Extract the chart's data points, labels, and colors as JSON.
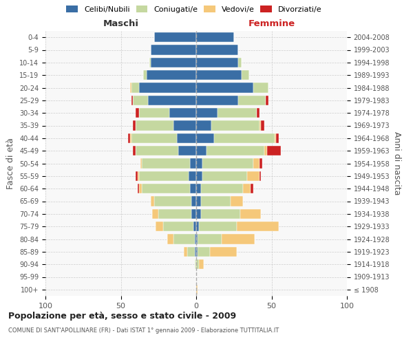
{
  "age_groups": [
    "100+",
    "95-99",
    "90-94",
    "85-89",
    "80-84",
    "75-79",
    "70-74",
    "65-69",
    "60-64",
    "55-59",
    "50-54",
    "45-49",
    "40-44",
    "35-39",
    "30-34",
    "25-29",
    "20-24",
    "15-19",
    "10-14",
    "5-9",
    "0-4"
  ],
  "birth_years": [
    "≤ 1908",
    "1909-1913",
    "1914-1918",
    "1919-1923",
    "1924-1928",
    "1929-1933",
    "1934-1938",
    "1939-1943",
    "1944-1948",
    "1949-1953",
    "1954-1958",
    "1959-1963",
    "1964-1968",
    "1969-1973",
    "1974-1978",
    "1979-1983",
    "1984-1988",
    "1989-1993",
    "1994-1998",
    "1999-2003",
    "2004-2008"
  ],
  "colors": {
    "celibi": "#3a6ea5",
    "coniugati": "#c5d8a0",
    "vedovi": "#f5c87a",
    "divorziati": "#cc2222"
  },
  "maschi": {
    "celibi": [
      0,
      0,
      0,
      1,
      1,
      2,
      3,
      3,
      4,
      5,
      4,
      12,
      13,
      15,
      18,
      32,
      38,
      33,
      30,
      30,
      28
    ],
    "coniugati": [
      0,
      0,
      1,
      5,
      14,
      20,
      22,
      25,
      32,
      33,
      32,
      28,
      30,
      25,
      20,
      10,
      5,
      2,
      1,
      0,
      0
    ],
    "vedovi": [
      0,
      0,
      0,
      2,
      4,
      5,
      4,
      2,
      2,
      1,
      1,
      0,
      1,
      0,
      0,
      0,
      1,
      0,
      0,
      0,
      0
    ],
    "divorziati": [
      0,
      0,
      0,
      0,
      0,
      0,
      0,
      0,
      1,
      1,
      0,
      2,
      1,
      2,
      2,
      1,
      0,
      0,
      0,
      0,
      0
    ]
  },
  "femmine": {
    "celibi": [
      0,
      0,
      0,
      1,
      1,
      2,
      3,
      3,
      3,
      4,
      4,
      7,
      12,
      10,
      14,
      28,
      38,
      30,
      28,
      28,
      25
    ],
    "coniugati": [
      0,
      0,
      2,
      8,
      16,
      25,
      26,
      20,
      28,
      30,
      34,
      38,
      40,
      32,
      26,
      18,
      10,
      5,
      2,
      0,
      0
    ],
    "vedovi": [
      1,
      0,
      3,
      18,
      22,
      28,
      14,
      8,
      5,
      8,
      4,
      2,
      1,
      1,
      0,
      0,
      0,
      0,
      0,
      0,
      0
    ],
    "divorziati": [
      0,
      0,
      0,
      0,
      0,
      0,
      0,
      0,
      2,
      1,
      2,
      9,
      2,
      2,
      2,
      2,
      0,
      0,
      0,
      0,
      0
    ]
  },
  "title": "Popolazione per età, sesso e stato civile - 2009",
  "subtitle": "COMUNE DI SANT'APOLLINARE (FR) - Dati ISTAT 1° gennaio 2009 - Elaborazione TUTTITALIA.IT",
  "xlabel_left": "Maschi",
  "xlabel_right": "Femmine",
  "ylabel_left": "Fasce di età",
  "ylabel_right": "Anni di nascita",
  "xlim": 100,
  "legend_labels": [
    "Celibi/Nubili",
    "Coniugati/e",
    "Vedovi/e",
    "Divorziati/e"
  ],
  "background_color": "#ffffff",
  "grid_color": "#cccccc"
}
